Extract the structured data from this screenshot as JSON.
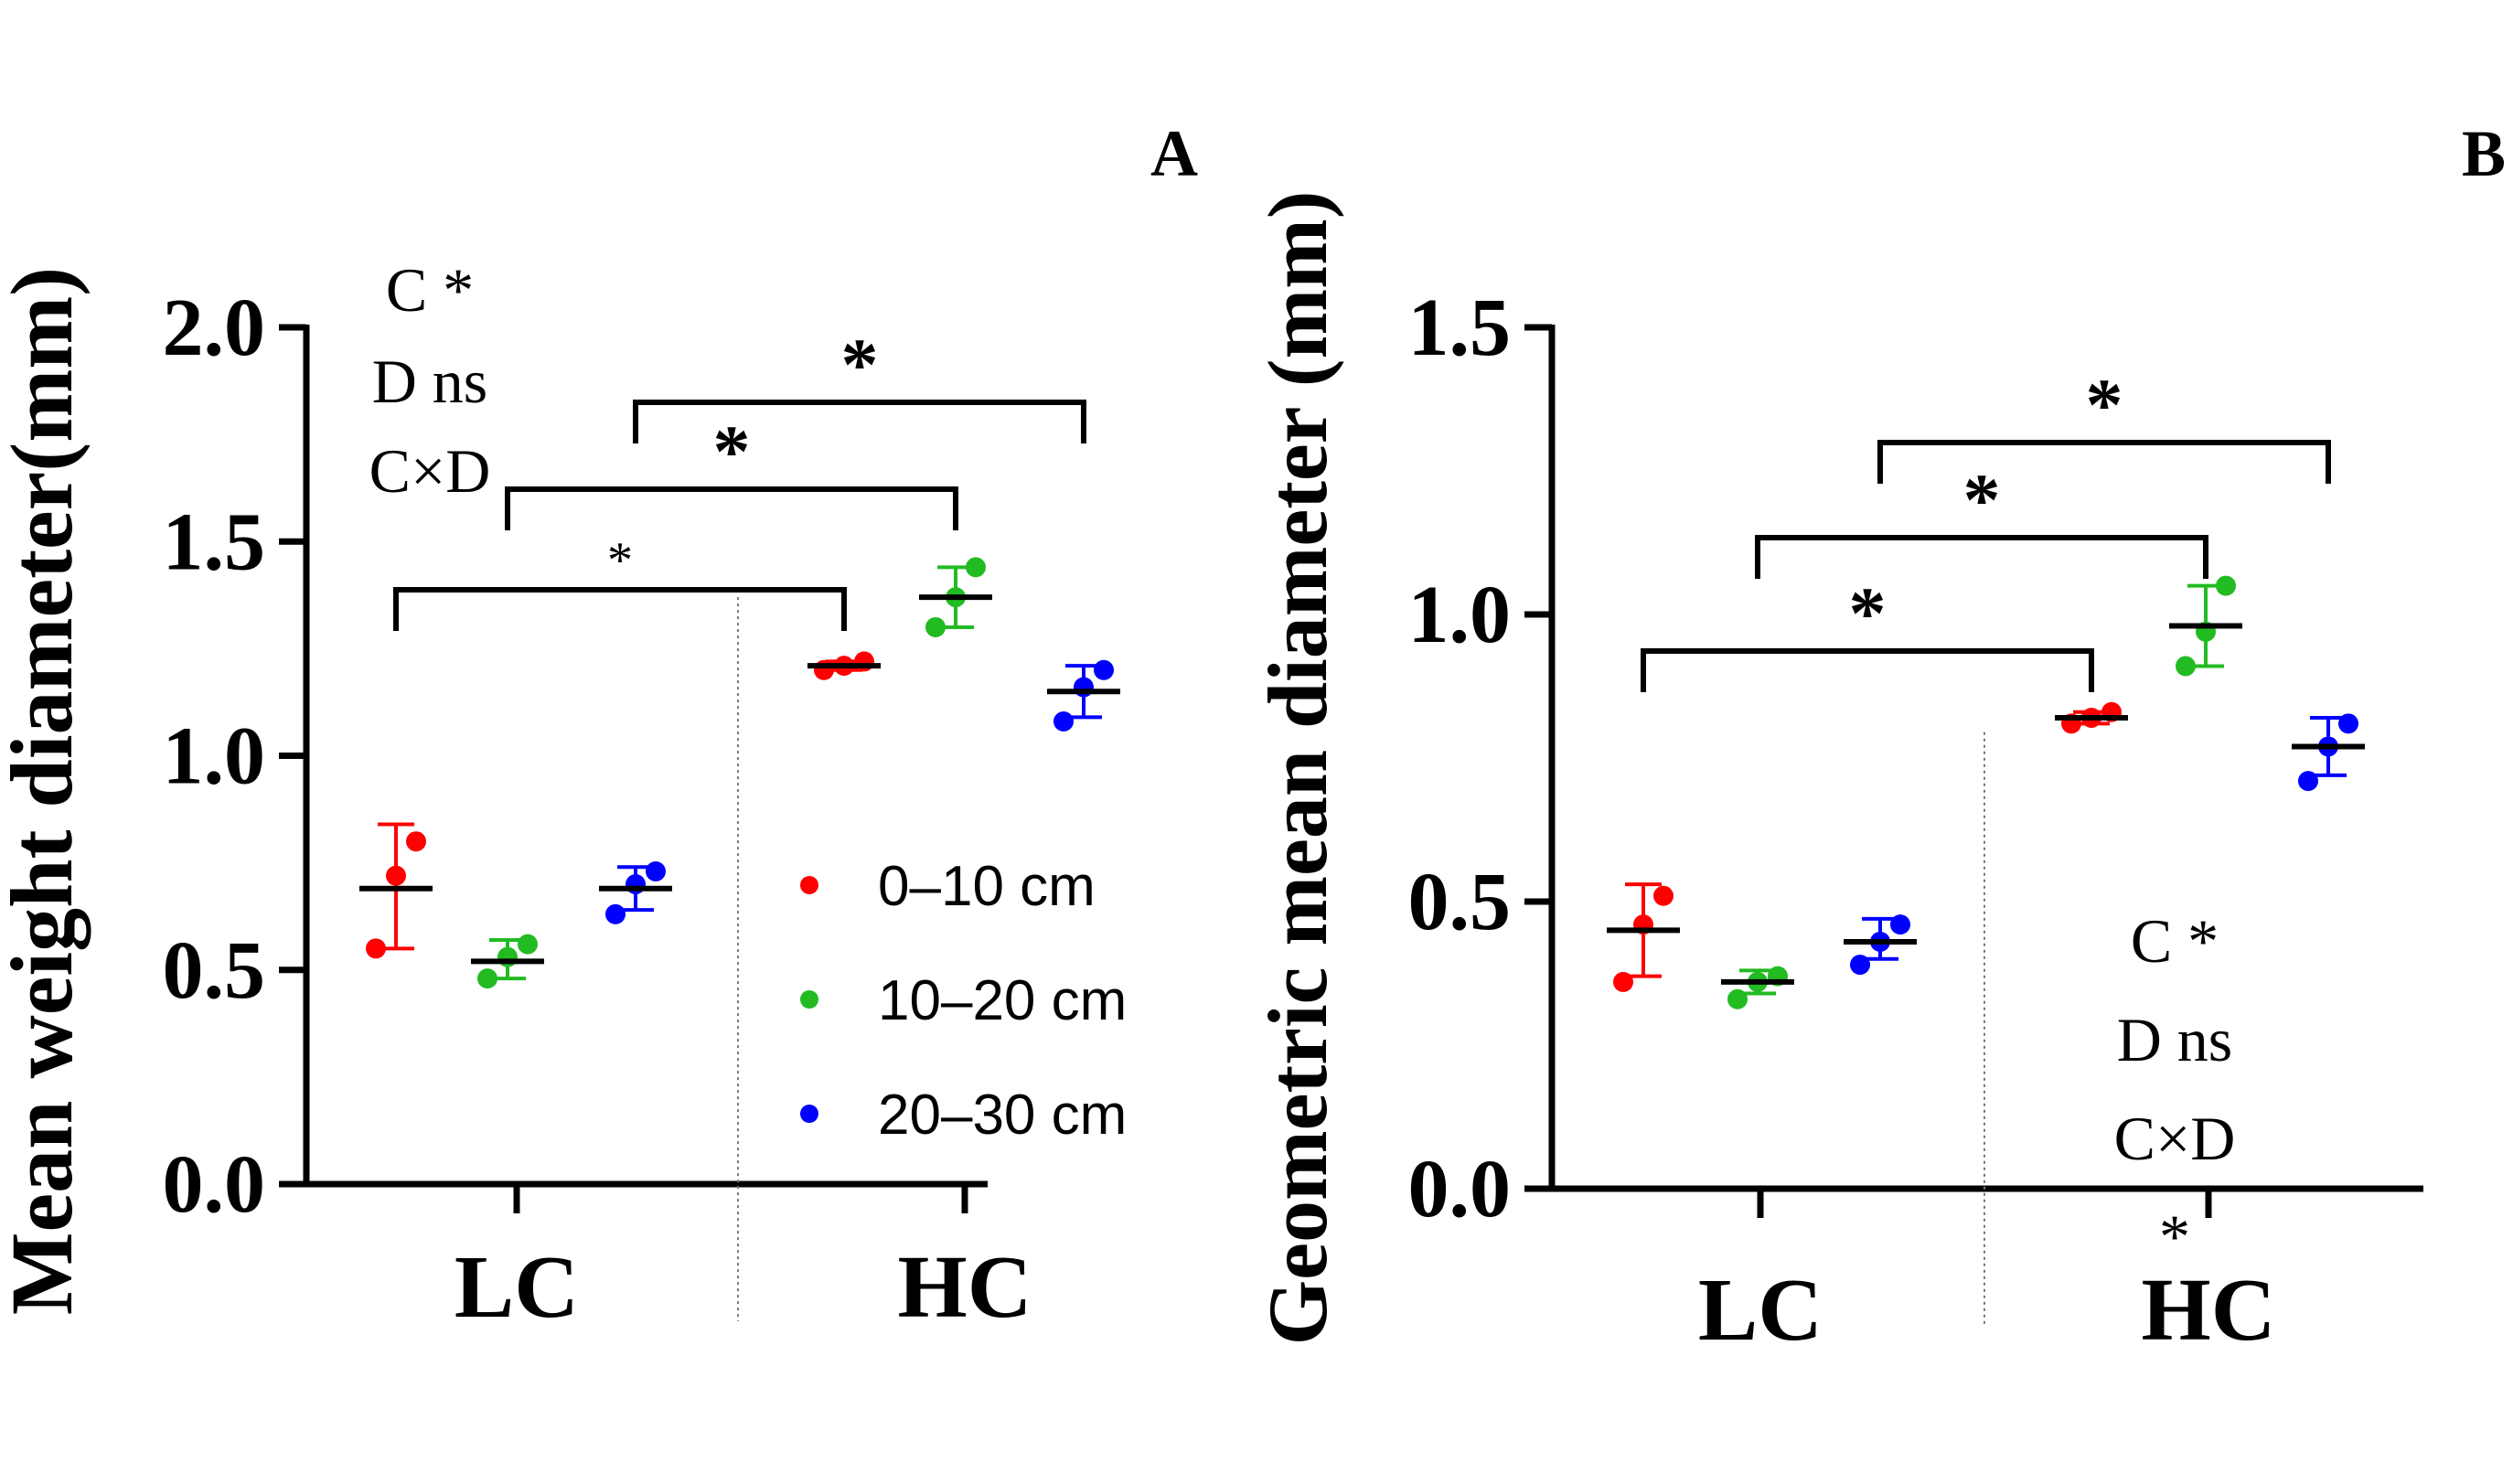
{
  "colors": {
    "depth_0_10": "#ff0000",
    "depth_10_20": "#22bb22",
    "depth_20_30": "#0000ff",
    "axis": "#000000",
    "mean_line": "#000000"
  },
  "legend": {
    "items": [
      {
        "label": "0–10 cm",
        "color": "#ff0000"
      },
      {
        "label": "10–20 cm",
        "color": "#22bb22"
      },
      {
        "label": "20–30 cm",
        "color": "#0000ff"
      }
    ]
  },
  "chart_data": [
    {
      "type": "scatter",
      "panel_label": "A",
      "title": "",
      "xlabel": "",
      "ylabel": "Mean weight diameter(mm)",
      "ylim": [
        0,
        2.0
      ],
      "yticks": [
        "0.0",
        "0.5",
        "1.0",
        "1.5",
        "2.0"
      ],
      "categories": [
        "LC",
        "HC"
      ],
      "series": [
        {
          "name": "0–10 cm",
          "color": "#ff0000",
          "group_points": [
            [
              0.55,
              0.72,
              0.8
            ],
            [
              1.2,
              1.21,
              1.22
            ]
          ],
          "group_mean": [
            0.69,
            1.21
          ],
          "group_error": [
            [
              0.55,
              0.84
            ],
            [
              1.2,
              1.22
            ]
          ]
        },
        {
          "name": "10–20 cm",
          "color": "#22bb22",
          "group_points": [
            [
              0.48,
              0.53,
              0.56
            ],
            [
              1.3,
              1.37,
              1.44
            ]
          ],
          "group_mean": [
            0.52,
            1.37
          ],
          "group_error": [
            [
              0.48,
              0.57
            ],
            [
              1.3,
              1.44
            ]
          ]
        },
        {
          "name": "20–30 cm",
          "color": "#0000ff",
          "group_points": [
            [
              0.63,
              0.7,
              0.73
            ],
            [
              1.08,
              1.16,
              1.2
            ]
          ],
          "group_mean": [
            0.69,
            1.15
          ],
          "group_error": [
            [
              0.64,
              0.74
            ],
            [
              1.09,
              1.21
            ]
          ]
        }
      ],
      "stats_text": [
        "C *",
        "D ns",
        "C×D"
      ],
      "comparisons": [
        {
          "from": "LC 0–10 cm",
          "to": "HC 0–10 cm",
          "label": "*"
        },
        {
          "from": "LC 10–20 cm",
          "to": "HC 10–20 cm",
          "label": "*"
        },
        {
          "from": "LC 20–30 cm",
          "to": "HC 20–30 cm",
          "label": "*"
        }
      ]
    },
    {
      "type": "scatter",
      "panel_label": "B",
      "title": "",
      "xlabel": "",
      "ylabel": "Geometric mean diameter (mm)",
      "ylim": [
        0,
        1.5
      ],
      "yticks": [
        "0.0",
        "0.5",
        "1.0",
        "1.5"
      ],
      "categories": [
        "LC",
        "HC"
      ],
      "series": [
        {
          "name": "0–10 cm",
          "color": "#ff0000",
          "group_points": [
            [
              0.36,
              0.46,
              0.51
            ],
            [
              0.81,
              0.82,
              0.83
            ]
          ],
          "group_mean": [
            0.45,
            0.82
          ],
          "group_error": [
            [
              0.37,
              0.53
            ],
            [
              0.81,
              0.83
            ]
          ]
        },
        {
          "name": "10–20 cm",
          "color": "#22bb22",
          "group_points": [
            [
              0.33,
              0.36,
              0.37
            ],
            [
              0.91,
              0.97,
              1.05
            ]
          ],
          "group_mean": [
            0.36,
            0.98
          ],
          "group_error": [
            [
              0.34,
              0.38
            ],
            [
              0.91,
              1.05
            ]
          ]
        },
        {
          "name": "20–30 cm",
          "color": "#0000ff",
          "group_points": [
            [
              0.39,
              0.43,
              0.46
            ],
            [
              0.71,
              0.77,
              0.81
            ]
          ],
          "group_mean": [
            0.43,
            0.77
          ],
          "group_error": [
            [
              0.4,
              0.47
            ],
            [
              0.72,
              0.82
            ]
          ]
        }
      ],
      "stats_text": [
        "C *",
        "D ns",
        "C×D",
        "*"
      ],
      "comparisons": [
        {
          "from": "LC 0–10 cm",
          "to": "HC 0–10 cm",
          "label": "*"
        },
        {
          "from": "LC 10–20 cm",
          "to": "HC 10–20 cm",
          "label": "*"
        },
        {
          "from": "LC 20–30 cm",
          "to": "HC 20–30 cm",
          "label": "*"
        }
      ]
    }
  ]
}
